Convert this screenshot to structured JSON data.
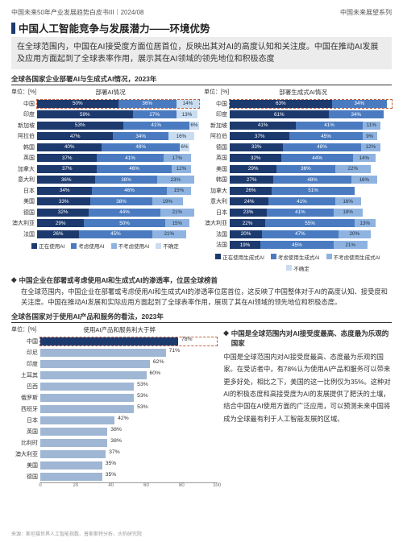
{
  "header": {
    "left": "中国未来50年产业发展趋势白皮书III｜2024/08",
    "right": "中国未来展望系列"
  },
  "title": "中国人工智能竞争与发展潜力——环境优势",
  "subtitle": "在全球范围内，中国在AI接受度方面位居首位，反映出其对AI的高度认知和关注度。中国在推动AI发展及应用方面起到了全球表率作用，展示其在AI领域的领先地位和积极态度",
  "section1_hdr": "全球各国家企业部署AI与生成式AI情况，2023年",
  "section3_hdr": "全球各国家对于使用AI产品和服务的看法，2023年",
  "unit_label": "单位：[%]",
  "chart1": {
    "title": "部署AI情况",
    "colors": [
      "#1d3a6e",
      "#4a7bc0",
      "#8fb3e0",
      "#c9dcf0"
    ],
    "rows": [
      {
        "label": "中国",
        "hlt": true,
        "segs": [
          50,
          36,
          0,
          14
        ]
      },
      {
        "label": "印度",
        "segs": [
          59,
          27,
          0,
          13
        ]
      },
      {
        "label": "新加坡",
        "segs": [
          53,
          41,
          0,
          6
        ]
      },
      {
        "label": "阿拉伯",
        "segs": [
          47,
          34,
          0,
          16
        ]
      },
      {
        "label": "韩国",
        "segs": [
          40,
          48,
          0,
          6
        ]
      },
      {
        "label": "英国",
        "segs": [
          37,
          41,
          17,
          0
        ]
      },
      {
        "label": "加拿大",
        "segs": [
          37,
          46,
          12,
          0
        ]
      },
      {
        "label": "意大利",
        "segs": [
          36,
          38,
          23,
          0
        ]
      },
      {
        "label": "日本",
        "segs": [
          34,
          46,
          15,
          0
        ]
      },
      {
        "label": "美国",
        "segs": [
          33,
          38,
          19,
          0
        ]
      },
      {
        "label": "德国",
        "segs": [
          32,
          44,
          21,
          0
        ]
      },
      {
        "label": "澳大利亚",
        "segs": [
          29,
          50,
          15,
          0
        ]
      },
      {
        "label": "法国",
        "segs": [
          26,
          45,
          21,
          0
        ]
      }
    ],
    "legend": [
      "正在使用AI",
      "考虑使用AI",
      "不考虑使用AI",
      "不确定"
    ]
  },
  "chart2": {
    "title": "部署生成式AI情况",
    "colors": [
      "#1d3a6e",
      "#4a7bc0",
      "#8fb3e0",
      "#c9dcf0"
    ],
    "rows": [
      {
        "label": "中国",
        "hlt": true,
        "segs": [
          63,
          34,
          0,
          0
        ]
      },
      {
        "label": "印度",
        "segs": [
          61,
          34,
          0,
          0
        ]
      },
      {
        "label": "新加坡",
        "segs": [
          41,
          41,
          11,
          0
        ]
      },
      {
        "label": "阿拉伯",
        "segs": [
          37,
          45,
          9,
          0
        ]
      },
      {
        "label": "德国",
        "segs": [
          33,
          48,
          12,
          0
        ]
      },
      {
        "label": "英国",
        "segs": [
          32,
          44,
          14,
          0
        ]
      },
      {
        "label": "美国",
        "segs": [
          29,
          36,
          22,
          0
        ]
      },
      {
        "label": "韩国",
        "segs": [
          27,
          48,
          16,
          0
        ]
      },
      {
        "label": "加拿大",
        "segs": [
          26,
          51,
          0,
          0
        ]
      },
      {
        "label": "意大利",
        "segs": [
          24,
          41,
          16,
          0
        ]
      },
      {
        "label": "日本",
        "segs": [
          23,
          41,
          18,
          0
        ]
      },
      {
        "label": "澳大利亚",
        "segs": [
          22,
          55,
          13,
          0
        ]
      },
      {
        "label": "法国",
        "segs": [
          20,
          47,
          20,
          0
        ]
      },
      {
        "label": "法国",
        "segs": [
          19,
          45,
          21,
          0
        ]
      }
    ],
    "legend": [
      "正在使用生成式AI",
      "考虑使用生成式AI",
      "不考虑使用生成式AI",
      "不确定"
    ]
  },
  "bullet1_title": "中国企业在部署或考虑使用AI和生成式AI的渗透率，位居全球榜首",
  "bullet1_body": "在全球范围内，中国企业在部署或考虑使用AI和生成式AI的渗透率位居首位，这反映了中国整体对于AI的高度认知、接受度和关注度。中国在推动AI发展和实际应用方面起到了全球表率作用，展现了其在AI领域的领先地位和积极态度。",
  "chart3": {
    "title": "使用AI产品和服务利大于弊",
    "color_peak": "#1d3a6e",
    "color_rest": "#9fb7d4",
    "rows": [
      {
        "label": "中国",
        "val": 78,
        "hlt": true
      },
      {
        "label": "印尼",
        "val": 71
      },
      {
        "label": "印度",
        "val": 62
      },
      {
        "label": "土耳其",
        "val": 60
      },
      {
        "label": "巴西",
        "val": 53
      },
      {
        "label": "俄罗斯",
        "val": 53
      },
      {
        "label": "西班牙",
        "val": 53
      },
      {
        "label": "日本",
        "val": 42
      },
      {
        "label": "英国",
        "val": 38
      },
      {
        "label": "比利时",
        "val": 38
      },
      {
        "label": "澳大利亚",
        "val": 37
      },
      {
        "label": "美国",
        "val": 35
      },
      {
        "label": "德国",
        "val": 35
      }
    ],
    "ticks": [
      0,
      20,
      40,
      60,
      80,
      100
    ]
  },
  "bullet2_title": "中国是全球范围内对AI接受度最高、态度最为乐观的国家",
  "bullet2_body": "中国是全球范围内对AI接受度最高、态度最为乐观的国家。在受访者中，有78%认为使用AI产品和服务可以带来更多好处，相比之下，美国的这一比例仅为35%。这种对AI的积极态度和高接受度为AI的发展提供了肥沃的土壤，结合中国在AI使用方面的广泛应用，可以预测未来中国将成为全球最有利于人工智能发展的区域。",
  "source": "来源：斯坦福世界人工智能指数、普斯斯特分析、头豹研究院",
  "bullet_char": "◆"
}
